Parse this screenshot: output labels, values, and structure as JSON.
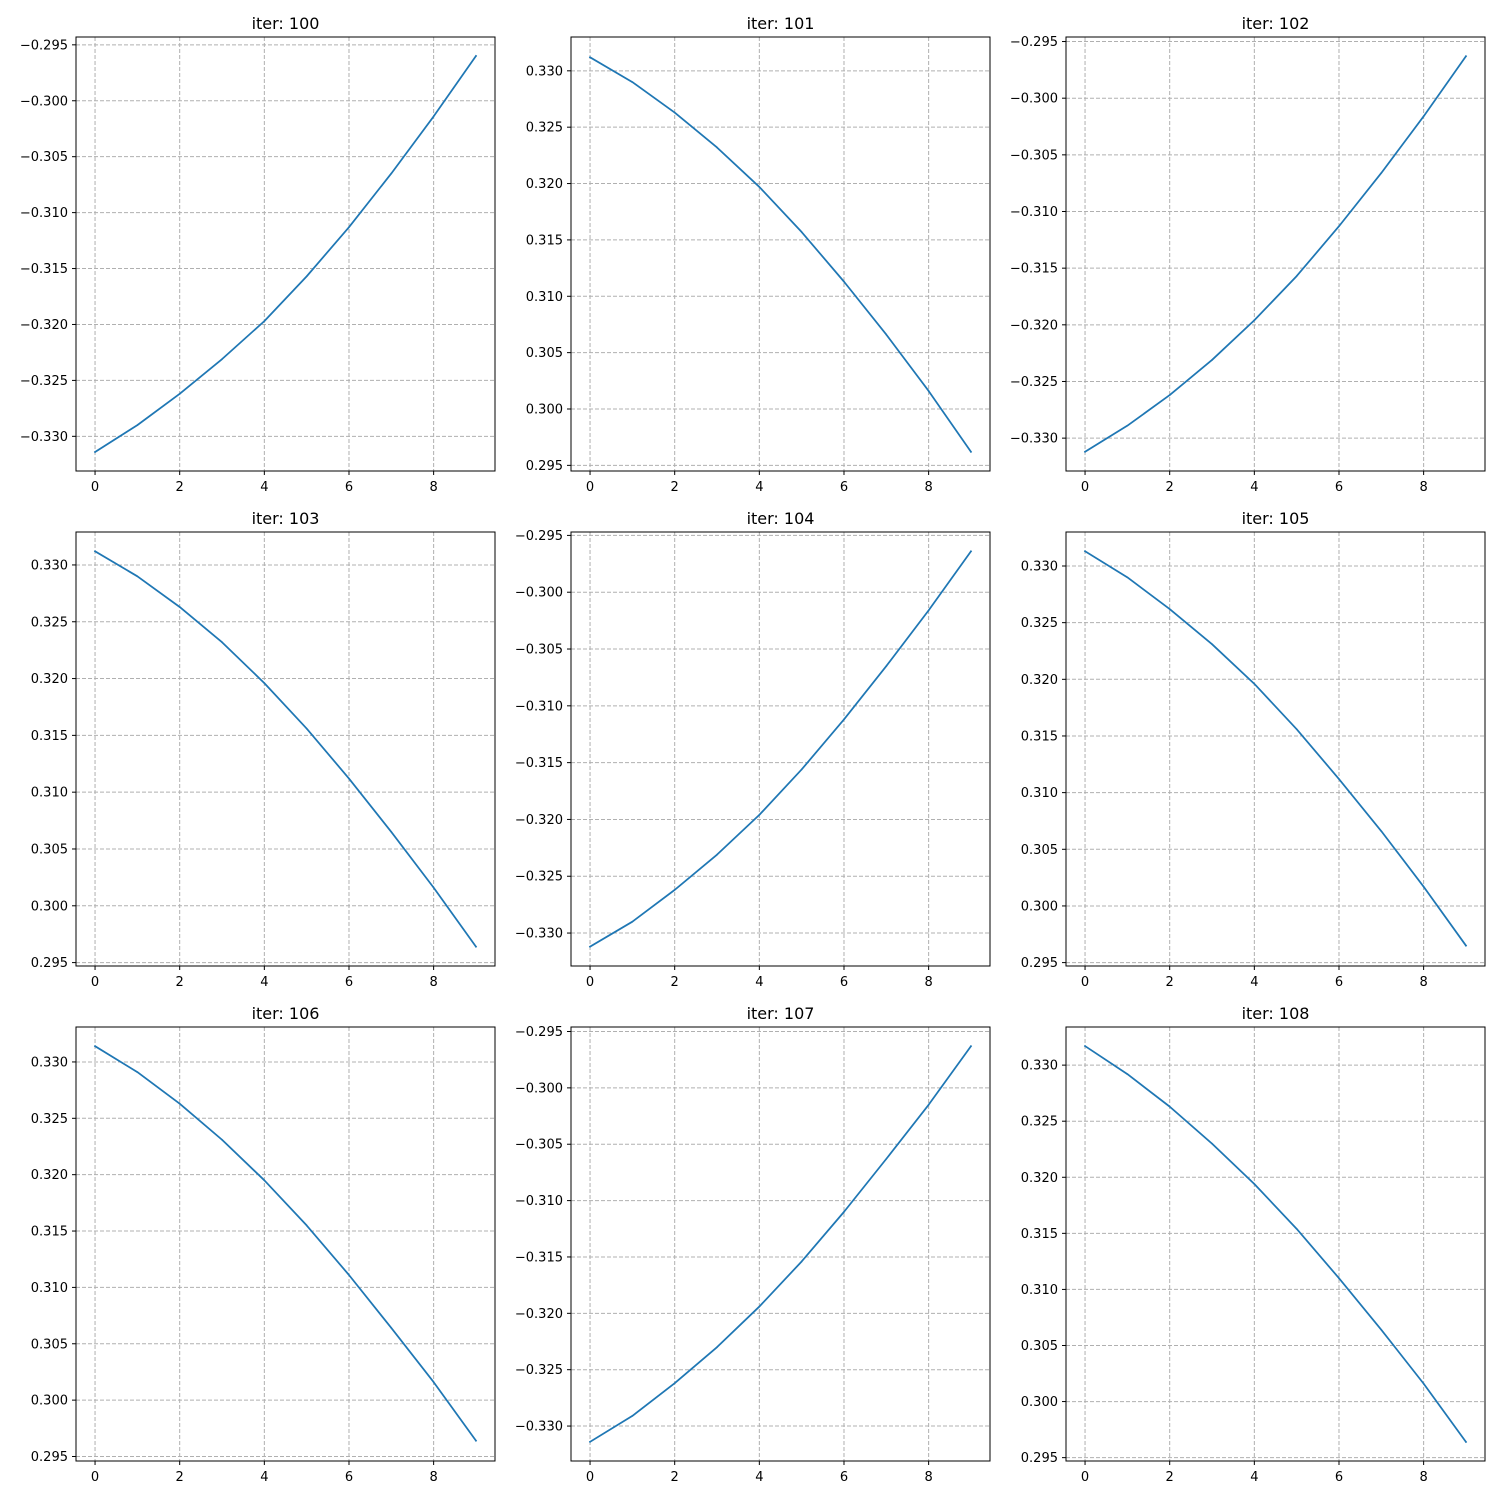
{
  "colors": {
    "series": "#1f77b4",
    "grid": "#b0b0b0"
  },
  "chart_data": [
    {
      "type": "line",
      "title": "iter: 100",
      "grid": true,
      "x": [
        0,
        1,
        2,
        3,
        4,
        5,
        6,
        7,
        8,
        9
      ],
      "series": [
        {
          "values": [
            -0.3314,
            -0.329,
            -0.3262,
            -0.3231,
            -0.3197,
            -0.3157,
            -0.3113,
            -0.3065,
            -0.3014,
            -0.296
          ]
        }
      ],
      "xticks": [
        0,
        2,
        4,
        6,
        8
      ],
      "xtick_labels": [
        "0",
        "2",
        "4",
        "6",
        "8"
      ],
      "xlim": [
        -0.45,
        9.45
      ],
      "yticks": [
        -0.33,
        -0.325,
        -0.32,
        -0.315,
        -0.31,
        -0.305,
        -0.3,
        -0.295
      ],
      "ytick_labels": [
        "−0.330",
        "−0.325",
        "−0.320",
        "−0.315",
        "−0.310",
        "−0.305",
        "−0.300",
        "−0.295"
      ],
      "ylim": [
        -0.3331,
        -0.2943
      ]
    },
    {
      "type": "line",
      "title": "iter: 101",
      "grid": true,
      "x": [
        0,
        1,
        2,
        3,
        4,
        5,
        6,
        7,
        8,
        9
      ],
      "series": [
        {
          "values": [
            0.3312,
            0.329,
            0.3263,
            0.3232,
            0.3197,
            0.3157,
            0.3113,
            0.3066,
            0.3016,
            0.2962
          ]
        }
      ],
      "xticks": [
        0,
        2,
        4,
        6,
        8
      ],
      "xtick_labels": [
        "0",
        "2",
        "4",
        "6",
        "8"
      ],
      "xlim": [
        -0.45,
        9.45
      ],
      "yticks": [
        0.295,
        0.3,
        0.305,
        0.31,
        0.315,
        0.32,
        0.325,
        0.33
      ],
      "ytick_labels": [
        "0.295",
        "0.300",
        "0.305",
        "0.310",
        "0.315",
        "0.320",
        "0.325",
        "0.330"
      ],
      "ylim": [
        0.2945,
        0.333
      ]
    },
    {
      "type": "line",
      "title": "iter: 102",
      "grid": true,
      "x": [
        0,
        1,
        2,
        3,
        4,
        5,
        6,
        7,
        8,
        9
      ],
      "series": [
        {
          "values": [
            -0.3312,
            -0.3289,
            -0.3262,
            -0.3231,
            -0.3196,
            -0.3157,
            -0.3113,
            -0.3066,
            -0.3016,
            -0.2963
          ]
        }
      ],
      "xticks": [
        0,
        2,
        4,
        6,
        8
      ],
      "xtick_labels": [
        "0",
        "2",
        "4",
        "6",
        "8"
      ],
      "xlim": [
        -0.45,
        9.45
      ],
      "yticks": [
        -0.33,
        -0.325,
        -0.32,
        -0.315,
        -0.31,
        -0.305,
        -0.3,
        -0.295
      ],
      "ytick_labels": [
        "−0.330",
        "−0.325",
        "−0.320",
        "−0.315",
        "−0.310",
        "−0.305",
        "−0.300",
        "−0.295"
      ],
      "ylim": [
        -0.3329,
        -0.2946
      ]
    },
    {
      "type": "line",
      "title": "iter: 103",
      "grid": true,
      "x": [
        0,
        1,
        2,
        3,
        4,
        5,
        6,
        7,
        8,
        9
      ],
      "series": [
        {
          "values": [
            0.3312,
            0.329,
            0.3263,
            0.3232,
            0.3196,
            0.3156,
            0.3112,
            0.3065,
            0.3016,
            0.2964
          ]
        }
      ],
      "xticks": [
        0,
        2,
        4,
        6,
        8
      ],
      "xtick_labels": [
        "0",
        "2",
        "4",
        "6",
        "8"
      ],
      "xlim": [
        -0.45,
        9.45
      ],
      "yticks": [
        0.295,
        0.3,
        0.305,
        0.31,
        0.315,
        0.32,
        0.325,
        0.33
      ],
      "ytick_labels": [
        "0.295",
        "0.300",
        "0.305",
        "0.310",
        "0.315",
        "0.320",
        "0.325",
        "0.330"
      ],
      "ylim": [
        0.2947,
        0.3329
      ]
    },
    {
      "type": "line",
      "title": "iter: 104",
      "grid": true,
      "x": [
        0,
        1,
        2,
        3,
        4,
        5,
        6,
        7,
        8,
        9
      ],
      "series": [
        {
          "values": [
            -0.3312,
            -0.329,
            -0.3262,
            -0.3231,
            -0.3196,
            -0.3156,
            -0.3112,
            -0.3065,
            -0.3016,
            -0.2964
          ]
        }
      ],
      "xticks": [
        0,
        2,
        4,
        6,
        8
      ],
      "xtick_labels": [
        "0",
        "2",
        "4",
        "6",
        "8"
      ],
      "xlim": [
        -0.45,
        9.45
      ],
      "yticks": [
        -0.33,
        -0.325,
        -0.32,
        -0.315,
        -0.31,
        -0.305,
        -0.3,
        -0.295
      ],
      "ytick_labels": [
        "−0.330",
        "−0.325",
        "−0.320",
        "−0.315",
        "−0.310",
        "−0.305",
        "−0.300",
        "−0.295"
      ],
      "ylim": [
        -0.3329,
        -0.2947
      ]
    },
    {
      "type": "line",
      "title": "iter: 105",
      "grid": true,
      "x": [
        0,
        1,
        2,
        3,
        4,
        5,
        6,
        7,
        8,
        9
      ],
      "series": [
        {
          "values": [
            0.3313,
            0.329,
            0.3262,
            0.3231,
            0.3196,
            0.3156,
            0.3112,
            0.3066,
            0.3017,
            0.2965
          ]
        }
      ],
      "xticks": [
        0,
        2,
        4,
        6,
        8
      ],
      "xtick_labels": [
        "0",
        "2",
        "4",
        "6",
        "8"
      ],
      "xlim": [
        -0.45,
        9.45
      ],
      "yticks": [
        0.295,
        0.3,
        0.305,
        0.31,
        0.315,
        0.32,
        0.325,
        0.33
      ],
      "ytick_labels": [
        "0.295",
        "0.300",
        "0.305",
        "0.310",
        "0.315",
        "0.320",
        "0.325",
        "0.330"
      ],
      "ylim": [
        0.2947,
        0.333
      ]
    },
    {
      "type": "line",
      "title": "iter: 106",
      "grid": true,
      "x": [
        0,
        1,
        2,
        3,
        4,
        5,
        6,
        7,
        8,
        9
      ],
      "series": [
        {
          "values": [
            0.3314,
            0.3291,
            0.3263,
            0.3231,
            0.3195,
            0.3155,
            0.3111,
            0.3064,
            0.3016,
            0.2964
          ]
        }
      ],
      "xticks": [
        0,
        2,
        4,
        6,
        8
      ],
      "xtick_labels": [
        "0",
        "2",
        "4",
        "6",
        "8"
      ],
      "xlim": [
        -0.45,
        9.45
      ],
      "yticks": [
        0.295,
        0.3,
        0.305,
        0.31,
        0.315,
        0.32,
        0.325,
        0.33
      ],
      "ytick_labels": [
        "0.295",
        "0.300",
        "0.305",
        "0.310",
        "0.315",
        "0.320",
        "0.325",
        "0.330"
      ],
      "ylim": [
        0.2946,
        0.3331
      ]
    },
    {
      "type": "line",
      "title": "iter: 107",
      "grid": true,
      "x": [
        0,
        1,
        2,
        3,
        4,
        5,
        6,
        7,
        8,
        9
      ],
      "series": [
        {
          "values": [
            -0.3314,
            -0.3291,
            -0.3262,
            -0.323,
            -0.3194,
            -0.3154,
            -0.311,
            -0.3063,
            -0.3015,
            -0.2963
          ]
        }
      ],
      "xticks": [
        0,
        2,
        4,
        6,
        8
      ],
      "xtick_labels": [
        "0",
        "2",
        "4",
        "6",
        "8"
      ],
      "xlim": [
        -0.45,
        9.45
      ],
      "yticks": [
        -0.33,
        -0.325,
        -0.32,
        -0.315,
        -0.31,
        -0.305,
        -0.3,
        -0.295
      ],
      "ytick_labels": [
        "−0.330",
        "−0.325",
        "−0.320",
        "−0.315",
        "−0.310",
        "−0.305",
        "−0.300",
        "−0.295"
      ],
      "ylim": [
        -0.3331,
        -0.2946
      ]
    },
    {
      "type": "line",
      "title": "iter: 108",
      "grid": true,
      "x": [
        0,
        1,
        2,
        3,
        4,
        5,
        6,
        7,
        8,
        9
      ],
      "series": [
        {
          "values": [
            0.3317,
            0.3292,
            0.3263,
            0.323,
            0.3194,
            0.3154,
            0.311,
            0.3064,
            0.3016,
            0.2964
          ]
        }
      ],
      "xticks": [
        0,
        2,
        4,
        6,
        8
      ],
      "xtick_labels": [
        "0",
        "2",
        "4",
        "6",
        "8"
      ],
      "xlim": [
        -0.45,
        9.45
      ],
      "yticks": [
        0.295,
        0.3,
        0.305,
        0.31,
        0.315,
        0.32,
        0.325,
        0.33
      ],
      "ytick_labels": [
        "0.295",
        "0.300",
        "0.305",
        "0.310",
        "0.315",
        "0.320",
        "0.325",
        "0.330"
      ],
      "ylim": [
        0.2947,
        0.3334
      ]
    }
  ]
}
